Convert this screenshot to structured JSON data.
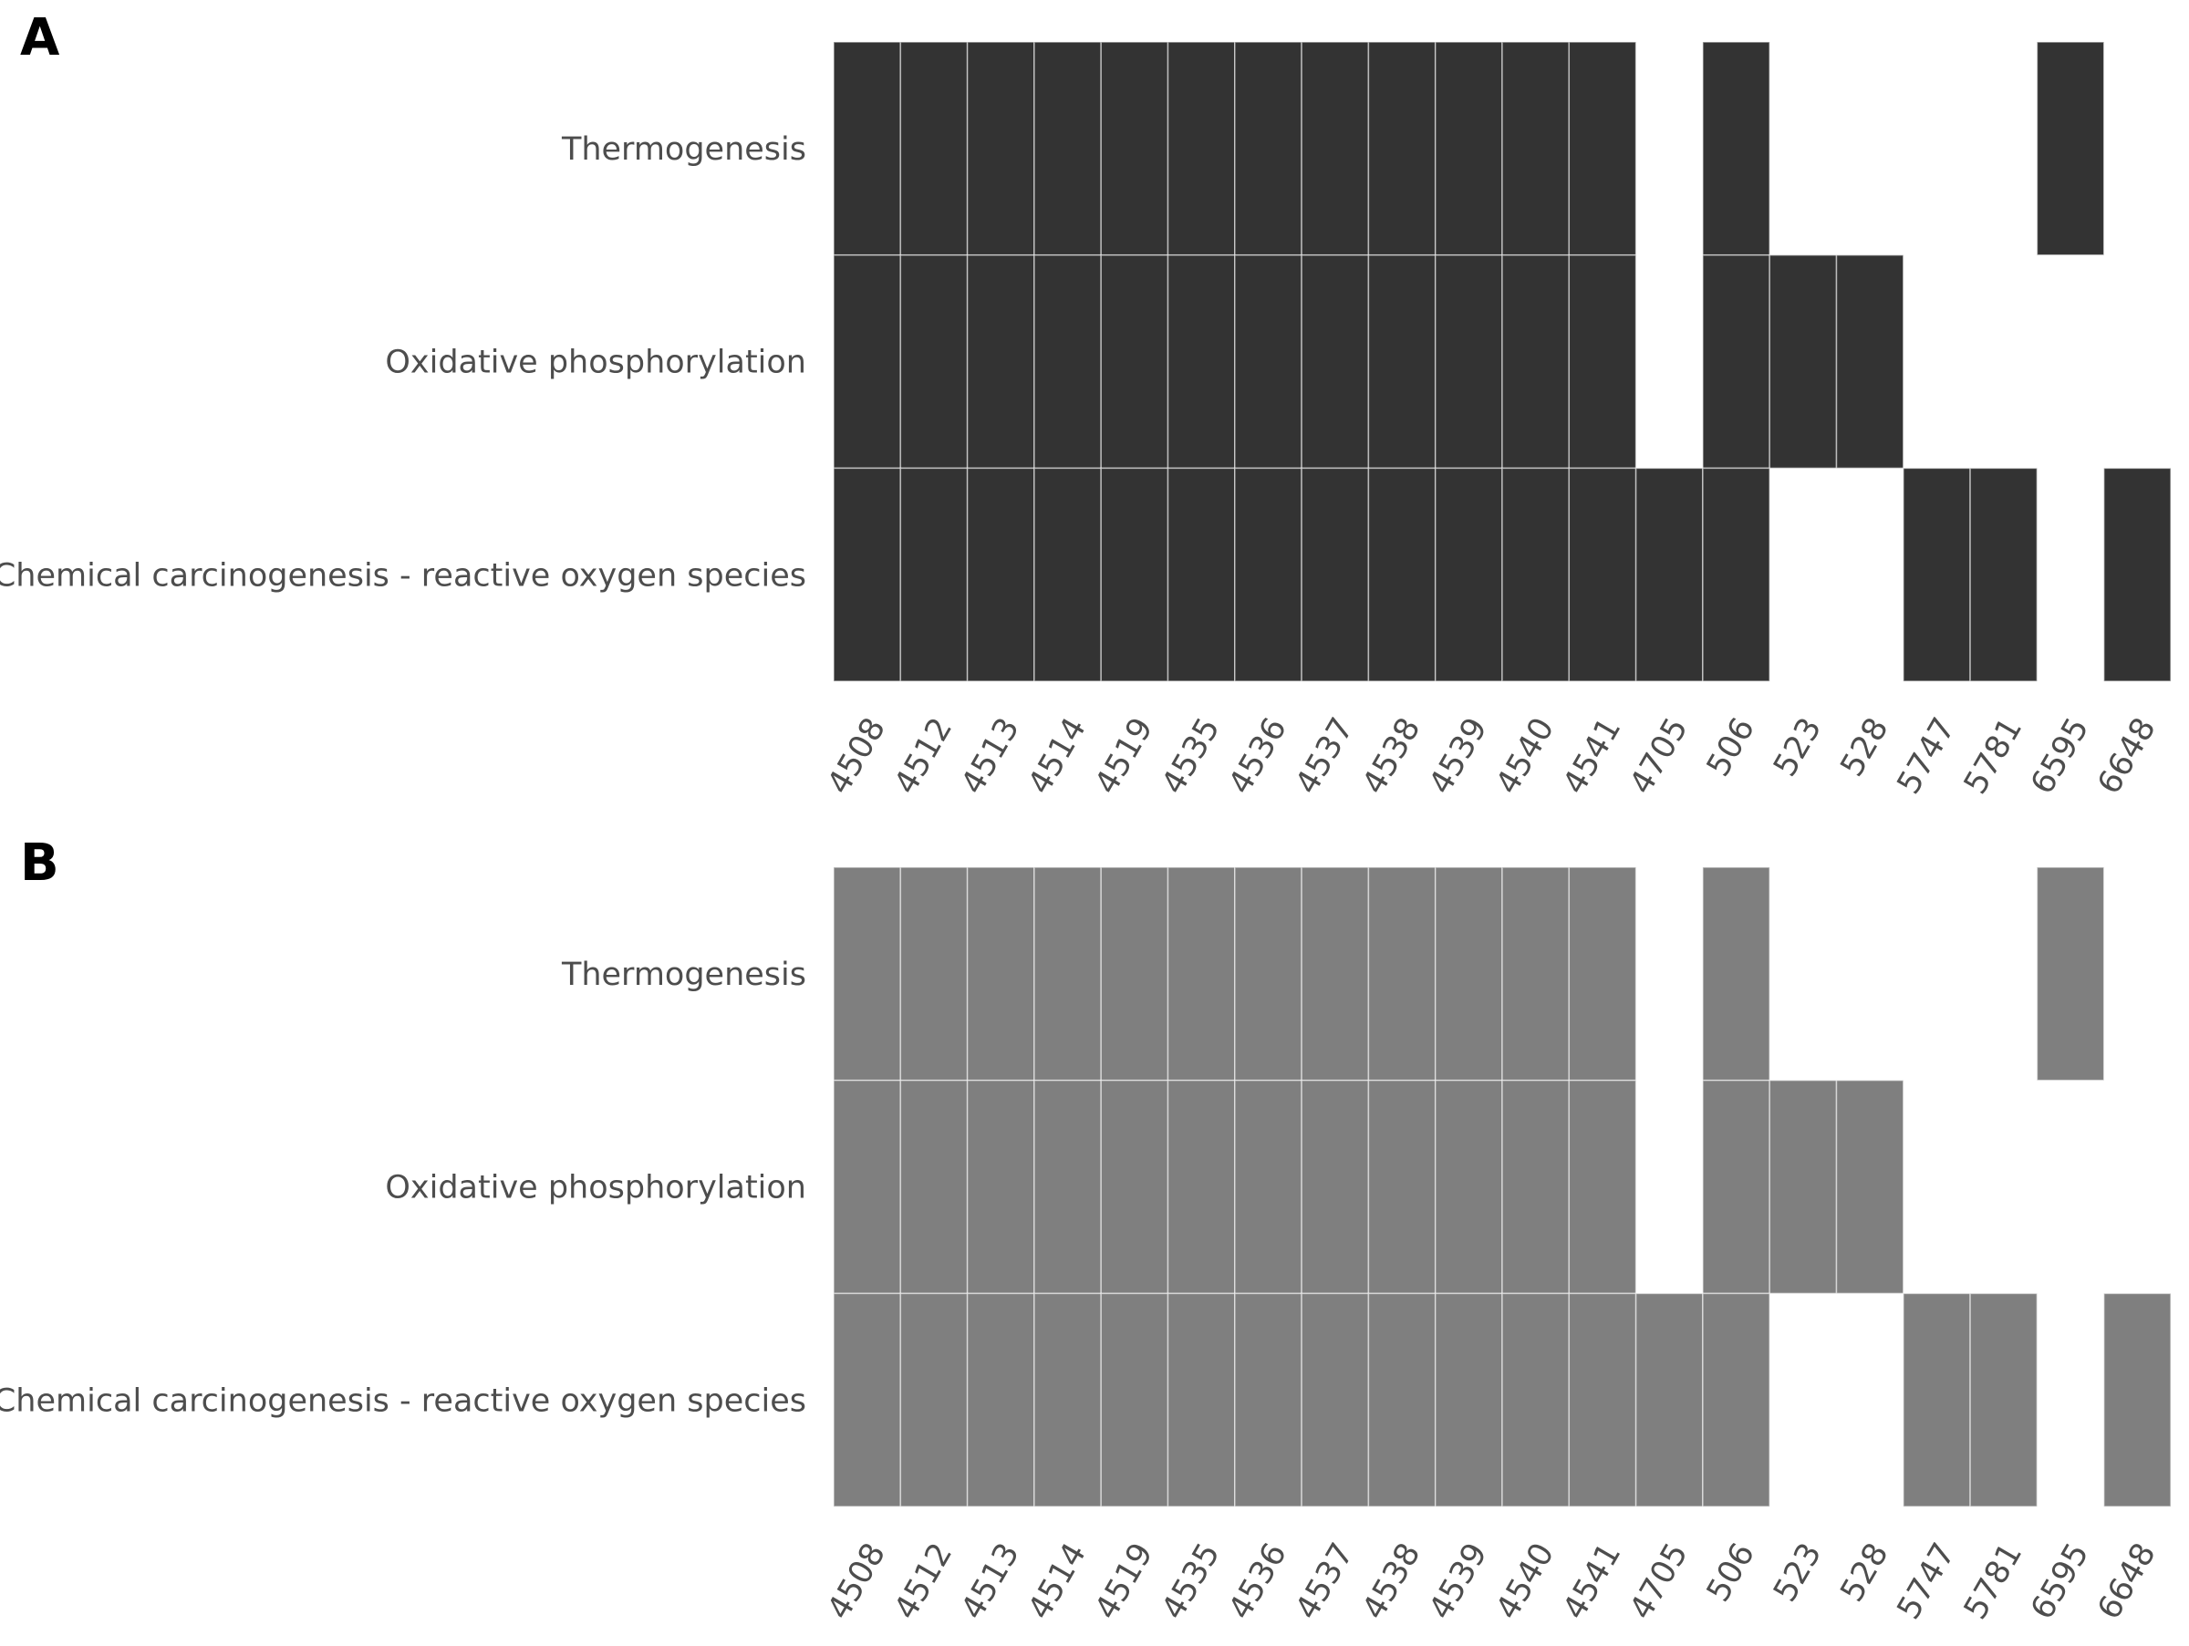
{
  "chart_data": [
    {
      "type": "heatmap",
      "panel": "A",
      "fill_color": "#333333",
      "rows": [
        "Thermogenesis",
        "Oxidative phosphorylation",
        "Chemical carcinogenesis - reactive oxygen species"
      ],
      "columns": [
        "4508",
        "4512",
        "4513",
        "4514",
        "4519",
        "4535",
        "4536",
        "4537",
        "4538",
        "4539",
        "4540",
        "4541",
        "4705",
        "506",
        "523",
        "528",
        "5747",
        "5781",
        "6595",
        "6648"
      ],
      "matrix": [
        [
          1,
          1,
          1,
          1,
          1,
          1,
          1,
          1,
          1,
          1,
          1,
          1,
          0,
          1,
          0,
          0,
          0,
          0,
          1,
          0
        ],
        [
          1,
          1,
          1,
          1,
          1,
          1,
          1,
          1,
          1,
          1,
          1,
          1,
          0,
          1,
          1,
          1,
          0,
          0,
          0,
          0
        ],
        [
          1,
          1,
          1,
          1,
          1,
          1,
          1,
          1,
          1,
          1,
          1,
          1,
          1,
          1,
          0,
          0,
          1,
          1,
          0,
          1
        ]
      ]
    },
    {
      "type": "heatmap",
      "panel": "B",
      "fill_color": "#7f7f7f",
      "rows": [
        "Thermogenesis",
        "Oxidative phosphorylation",
        "Chemical carcinogenesis - reactive oxygen species"
      ],
      "columns": [
        "4508",
        "4512",
        "4513",
        "4514",
        "4519",
        "4535",
        "4536",
        "4537",
        "4538",
        "4539",
        "4540",
        "4541",
        "4705",
        "506",
        "523",
        "528",
        "5747",
        "5781",
        "6595",
        "6648"
      ],
      "matrix": [
        [
          1,
          1,
          1,
          1,
          1,
          1,
          1,
          1,
          1,
          1,
          1,
          1,
          0,
          1,
          0,
          0,
          0,
          0,
          1,
          0
        ],
        [
          1,
          1,
          1,
          1,
          1,
          1,
          1,
          1,
          1,
          1,
          1,
          1,
          0,
          1,
          1,
          1,
          0,
          0,
          0,
          0
        ],
        [
          1,
          1,
          1,
          1,
          1,
          1,
          1,
          1,
          1,
          1,
          1,
          1,
          1,
          1,
          0,
          0,
          1,
          1,
          0,
          1
        ]
      ]
    }
  ]
}
